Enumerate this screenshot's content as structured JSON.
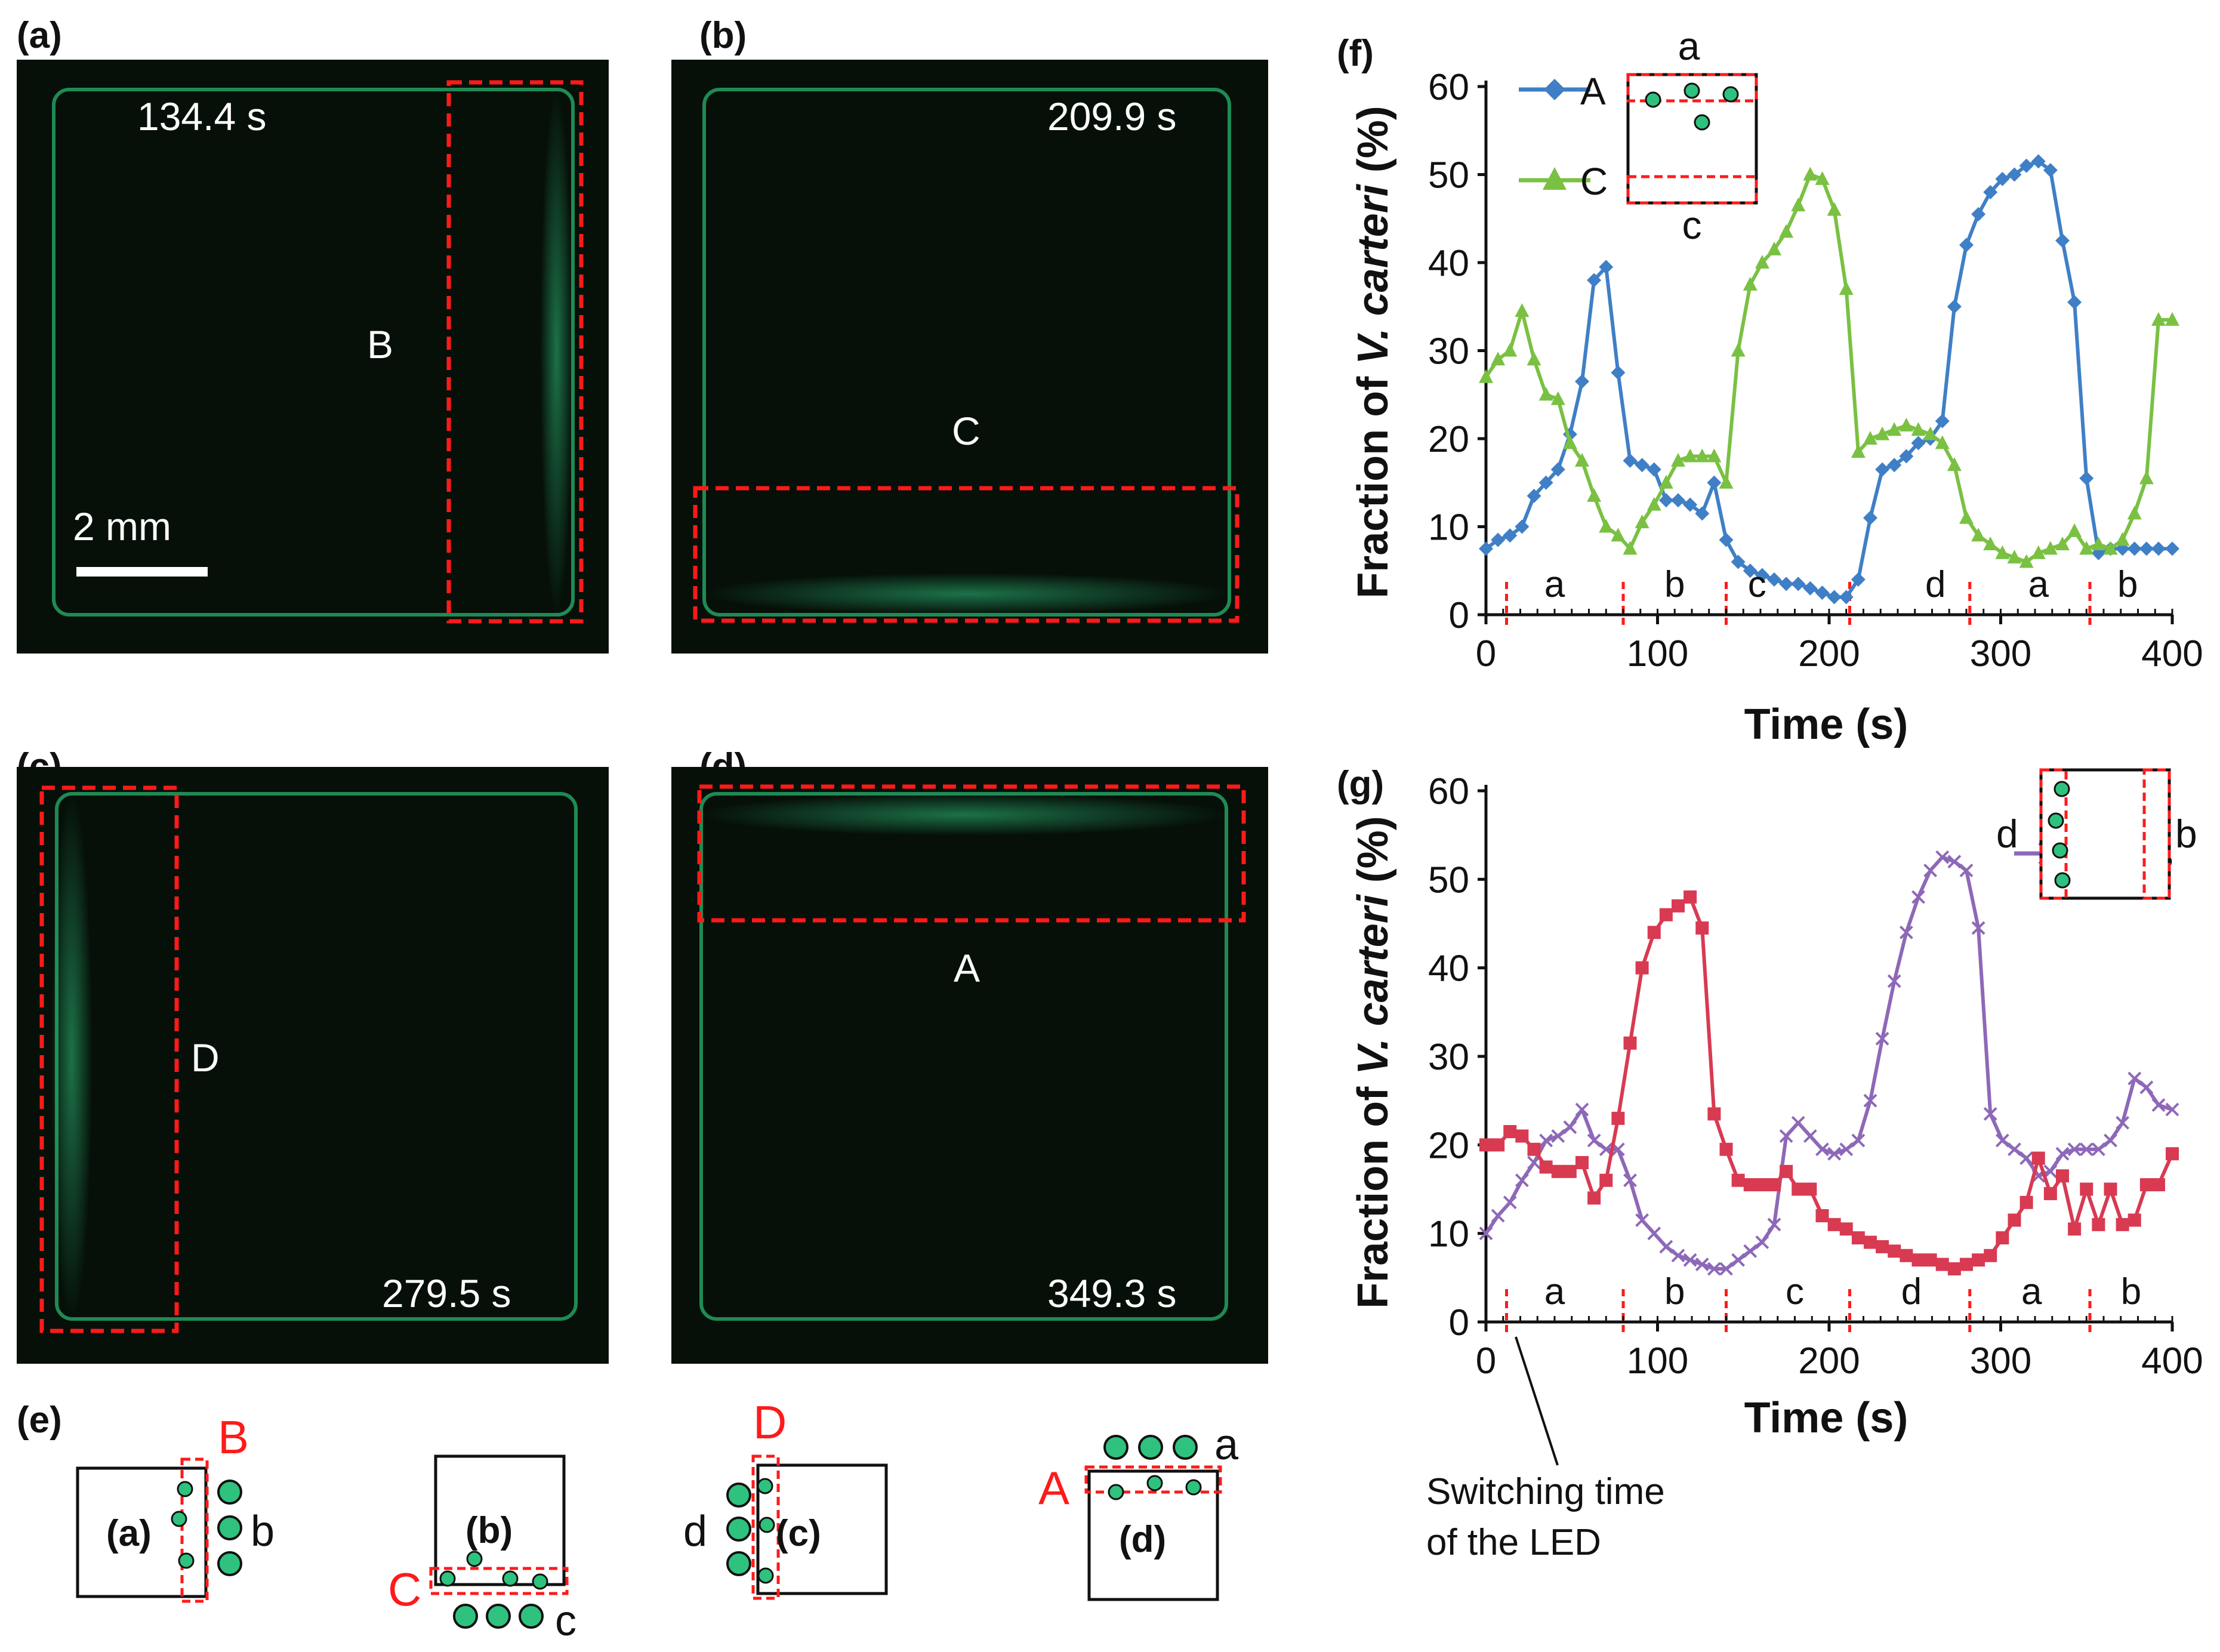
{
  "panels": {
    "a": {
      "label": "(a)",
      "time": "134.4 s",
      "region": "B",
      "scale_bar": "2 mm"
    },
    "b": {
      "label": "(b)",
      "time": "209.9 s",
      "region": "C"
    },
    "c": {
      "label": "(c)",
      "time": "279.5 s",
      "region": "D"
    },
    "d": {
      "label": "(d)",
      "time": "349.3 s",
      "region": "A"
    }
  },
  "schematic": {
    "label": "(e)",
    "items": [
      {
        "inner": "(a)",
        "region": "B",
        "led": "b"
      },
      {
        "inner": "(b)",
        "region": "C",
        "led": "c"
      },
      {
        "inner": "(c)",
        "region": "D",
        "led": "d"
      },
      {
        "inner": "(d)",
        "region": "A",
        "led": "a"
      }
    ]
  },
  "colors": {
    "red": "#ff1a1a",
    "blue": "#3f7fc6",
    "green": "#7ac143",
    "purple": "#8e68b8",
    "crimson": "#d83a52",
    "cell": "#2ec27e",
    "micro_bg": "#061008"
  },
  "annotation": {
    "line1": "Switching time",
    "line2": "of the LED"
  },
  "chart_data": [
    {
      "panel_label": "(f)",
      "type": "line",
      "xlabel": "Time (s)",
      "ylabel_prefix": "Fraction of ",
      "ylabel_species": "V. carteri",
      "ylabel_suffix": " (%)",
      "xlim": [
        0,
        400
      ],
      "ylim": [
        0,
        60
      ],
      "xticks": [
        0,
        100,
        200,
        300,
        400
      ],
      "yticks": [
        0,
        10,
        20,
        30,
        40,
        50,
        60
      ],
      "switch_times": [
        12,
        80,
        140,
        212,
        282,
        352
      ],
      "phases": [
        {
          "label": "a",
          "x": 40
        },
        {
          "label": "b",
          "x": 110
        },
        {
          "label": "c",
          "x": 158
        },
        {
          "label": "d",
          "x": 262
        },
        {
          "label": "a",
          "x": 322
        },
        {
          "label": "b",
          "x": 374
        }
      ],
      "inset": {
        "top": "a",
        "bottom": "c"
      },
      "series": [
        {
          "name": "A",
          "marker": "diamond",
          "color": "#3f7fc6",
          "x": [
            0,
            7,
            14,
            21,
            28,
            35,
            42,
            49,
            56,
            63,
            70,
            77,
            84,
            91,
            98,
            105,
            112,
            119,
            126,
            133,
            140,
            147,
            154,
            161,
            168,
            175,
            182,
            189,
            196,
            203,
            210,
            217,
            224,
            231,
            238,
            245,
            252,
            259,
            266,
            273,
            280,
            287,
            294,
            301,
            308,
            315,
            322,
            329,
            336,
            343,
            350,
            357,
            364,
            371,
            378,
            385,
            392,
            400
          ],
          "y": [
            7.5,
            8.5,
            9.0,
            10.0,
            13.5,
            15.0,
            16.5,
            20.5,
            26.5,
            38.0,
            39.5,
            27.5,
            17.5,
            17.0,
            16.5,
            13.0,
            13.0,
            12.5,
            11.5,
            15.0,
            8.5,
            6.0,
            5.0,
            4.5,
            4.0,
            3.5,
            3.5,
            3.0,
            2.5,
            2.0,
            2.0,
            4.0,
            11.0,
            16.5,
            17.0,
            18.0,
            19.5,
            20.0,
            22.0,
            35.0,
            42.0,
            45.5,
            48.0,
            49.5,
            50.0,
            51.0,
            51.5,
            50.5,
            42.5,
            35.5,
            15.5,
            7.0,
            7.5,
            7.5,
            7.5,
            7.5,
            7.5,
            7.5
          ]
        },
        {
          "name": "C",
          "marker": "triangle",
          "color": "#7ac143",
          "x": [
            0,
            7,
            14,
            21,
            28,
            35,
            42,
            49,
            56,
            63,
            70,
            77,
            84,
            91,
            98,
            105,
            112,
            119,
            126,
            133,
            140,
            147,
            154,
            161,
            168,
            175,
            182,
            189,
            196,
            203,
            210,
            217,
            224,
            231,
            238,
            245,
            252,
            259,
            266,
            273,
            280,
            287,
            294,
            301,
            308,
            315,
            322,
            329,
            336,
            343,
            350,
            357,
            364,
            371,
            378,
            385,
            392,
            400
          ],
          "y": [
            27.0,
            29.0,
            30.0,
            34.5,
            29.0,
            25.0,
            24.5,
            19.5,
            17.5,
            13.5,
            10.0,
            9.0,
            7.5,
            10.5,
            12.5,
            15.0,
            17.5,
            18.0,
            18.0,
            18.0,
            15.0,
            30.0,
            37.5,
            40.0,
            41.5,
            43.5,
            46.5,
            50.0,
            49.5,
            46.0,
            37.0,
            18.5,
            20.0,
            20.5,
            21.0,
            21.5,
            21.0,
            20.5,
            19.5,
            17.0,
            11.0,
            9.0,
            8.0,
            7.0,
            6.5,
            6.0,
            7.0,
            7.5,
            8.0,
            9.5,
            7.5,
            8.0,
            7.5,
            8.5,
            11.5,
            15.5,
            33.5,
            33.5
          ]
        }
      ]
    },
    {
      "panel_label": "(g)",
      "type": "line",
      "xlabel": "Time (s)",
      "ylabel_prefix": "Fraction of ",
      "ylabel_species": "V. carteri",
      "ylabel_suffix": " (%)",
      "xlim": [
        0,
        400
      ],
      "ylim": [
        0,
        60
      ],
      "xticks": [
        0,
        100,
        200,
        300,
        400
      ],
      "yticks": [
        0,
        10,
        20,
        30,
        40,
        50,
        60
      ],
      "switch_times": [
        12,
        80,
        140,
        212,
        282,
        352
      ],
      "phases": [
        {
          "label": "a",
          "x": 40
        },
        {
          "label": "b",
          "x": 110
        },
        {
          "label": "c",
          "x": 180
        },
        {
          "label": "d",
          "x": 248
        },
        {
          "label": "a",
          "x": 318
        },
        {
          "label": "b",
          "x": 376
        }
      ],
      "inset": {
        "left": "d",
        "right": "b"
      },
      "series": [
        {
          "name": "D",
          "marker": "x",
          "color": "#8e68b8",
          "x": [
            0,
            7,
            14,
            21,
            28,
            35,
            42,
            49,
            56,
            63,
            70,
            77,
            84,
            91,
            98,
            105,
            112,
            119,
            126,
            133,
            140,
            147,
            154,
            161,
            168,
            175,
            182,
            189,
            196,
            203,
            210,
            217,
            224,
            231,
            238,
            245,
            252,
            259,
            266,
            273,
            280,
            287,
            294,
            301,
            308,
            315,
            322,
            329,
            336,
            343,
            350,
            357,
            364,
            371,
            378,
            385,
            392,
            400
          ],
          "y": [
            10.0,
            12.0,
            13.5,
            16.0,
            18.0,
            20.5,
            21.0,
            22.0,
            24.0,
            20.5,
            19.5,
            19.5,
            16.0,
            11.5,
            10.0,
            8.5,
            7.5,
            7.0,
            6.5,
            6.0,
            6.0,
            7.0,
            8.0,
            9.0,
            11.0,
            21.0,
            22.5,
            21.0,
            19.5,
            19.0,
            19.5,
            20.5,
            25.0,
            32.0,
            38.5,
            44.0,
            48.0,
            51.0,
            52.5,
            52.0,
            51.0,
            44.5,
            23.5,
            20.5,
            19.5,
            18.5,
            16.5,
            17.0,
            19.0,
            19.5,
            19.5,
            19.5,
            20.5,
            22.5,
            27.5,
            26.5,
            24.5,
            24.0
          ]
        },
        {
          "name": "B",
          "marker": "square",
          "color": "#d83a52",
          "x": [
            0,
            7,
            14,
            21,
            28,
            35,
            42,
            49,
            56,
            63,
            70,
            77,
            84,
            91,
            98,
            105,
            112,
            119,
            126,
            133,
            140,
            147,
            154,
            161,
            168,
            175,
            182,
            189,
            196,
            203,
            210,
            217,
            224,
            231,
            238,
            245,
            252,
            259,
            266,
            273,
            280,
            287,
            294,
            301,
            308,
            315,
            322,
            329,
            336,
            343,
            350,
            357,
            364,
            371,
            378,
            385,
            392,
            400
          ],
          "y": [
            20.0,
            20.0,
            21.5,
            21.0,
            19.5,
            17.5,
            17.0,
            17.0,
            18.0,
            14.0,
            16.0,
            23.0,
            31.5,
            40.0,
            44.0,
            46.0,
            47.0,
            48.0,
            44.5,
            23.5,
            19.5,
            16.0,
            15.5,
            15.5,
            15.5,
            17.0,
            15.0,
            15.0,
            12.0,
            11.0,
            10.5,
            9.5,
            9.0,
            8.5,
            8.0,
            7.5,
            7.0,
            7.0,
            6.5,
            6.0,
            6.5,
            7.0,
            7.5,
            9.5,
            11.5,
            13.5,
            18.5,
            14.5,
            16.5,
            10.5,
            15.0,
            11.0,
            15.0,
            11.0,
            11.5,
            15.5,
            15.5,
            19.0
          ]
        }
      ]
    }
  ]
}
